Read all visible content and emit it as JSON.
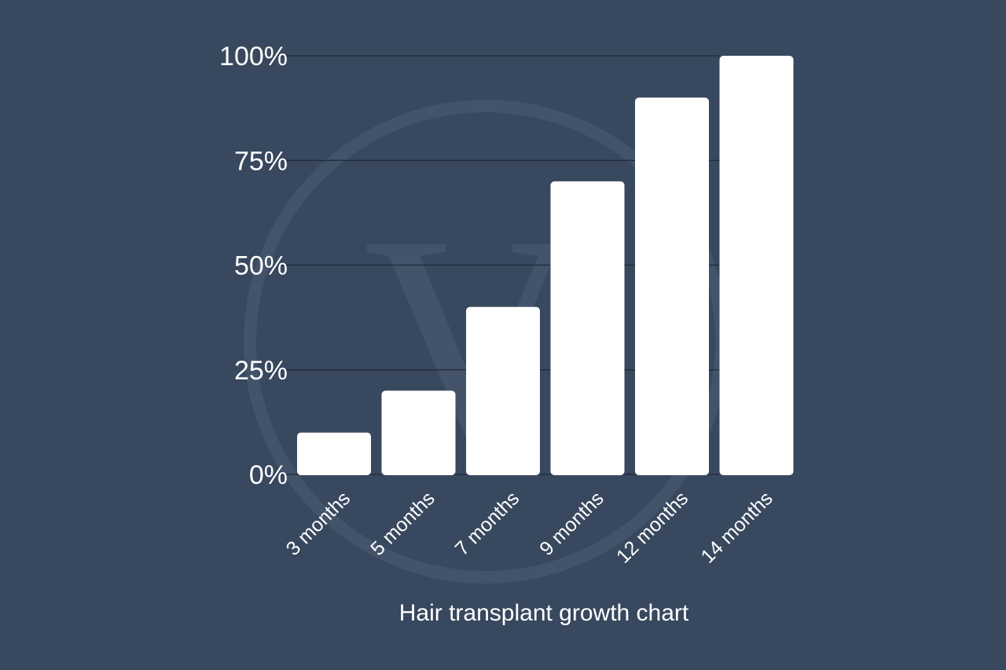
{
  "colors": {
    "background": "#38485e",
    "bar": "#ffffff",
    "text": "#ffffff",
    "gridline": "#1f2a38",
    "watermark": "#43546a"
  },
  "watermark": {
    "icon": "circle-v-logo-watermark",
    "letter": "V"
  },
  "chart_data": {
    "type": "bar",
    "title": "Hair transplant growth chart",
    "xlabel": "",
    "ylabel": "",
    "categories": [
      "3 months",
      "5 months",
      "7 months",
      "9 months",
      "12 months",
      "14 months"
    ],
    "values": [
      10,
      20,
      40,
      70,
      90,
      100
    ],
    "ylim": [
      0,
      100
    ],
    "yticks": [
      0,
      25,
      50,
      75,
      100
    ],
    "ytick_labels": [
      "0%",
      "25%",
      "50%",
      "75%",
      "100%"
    ],
    "grid": true,
    "legend": "none"
  }
}
